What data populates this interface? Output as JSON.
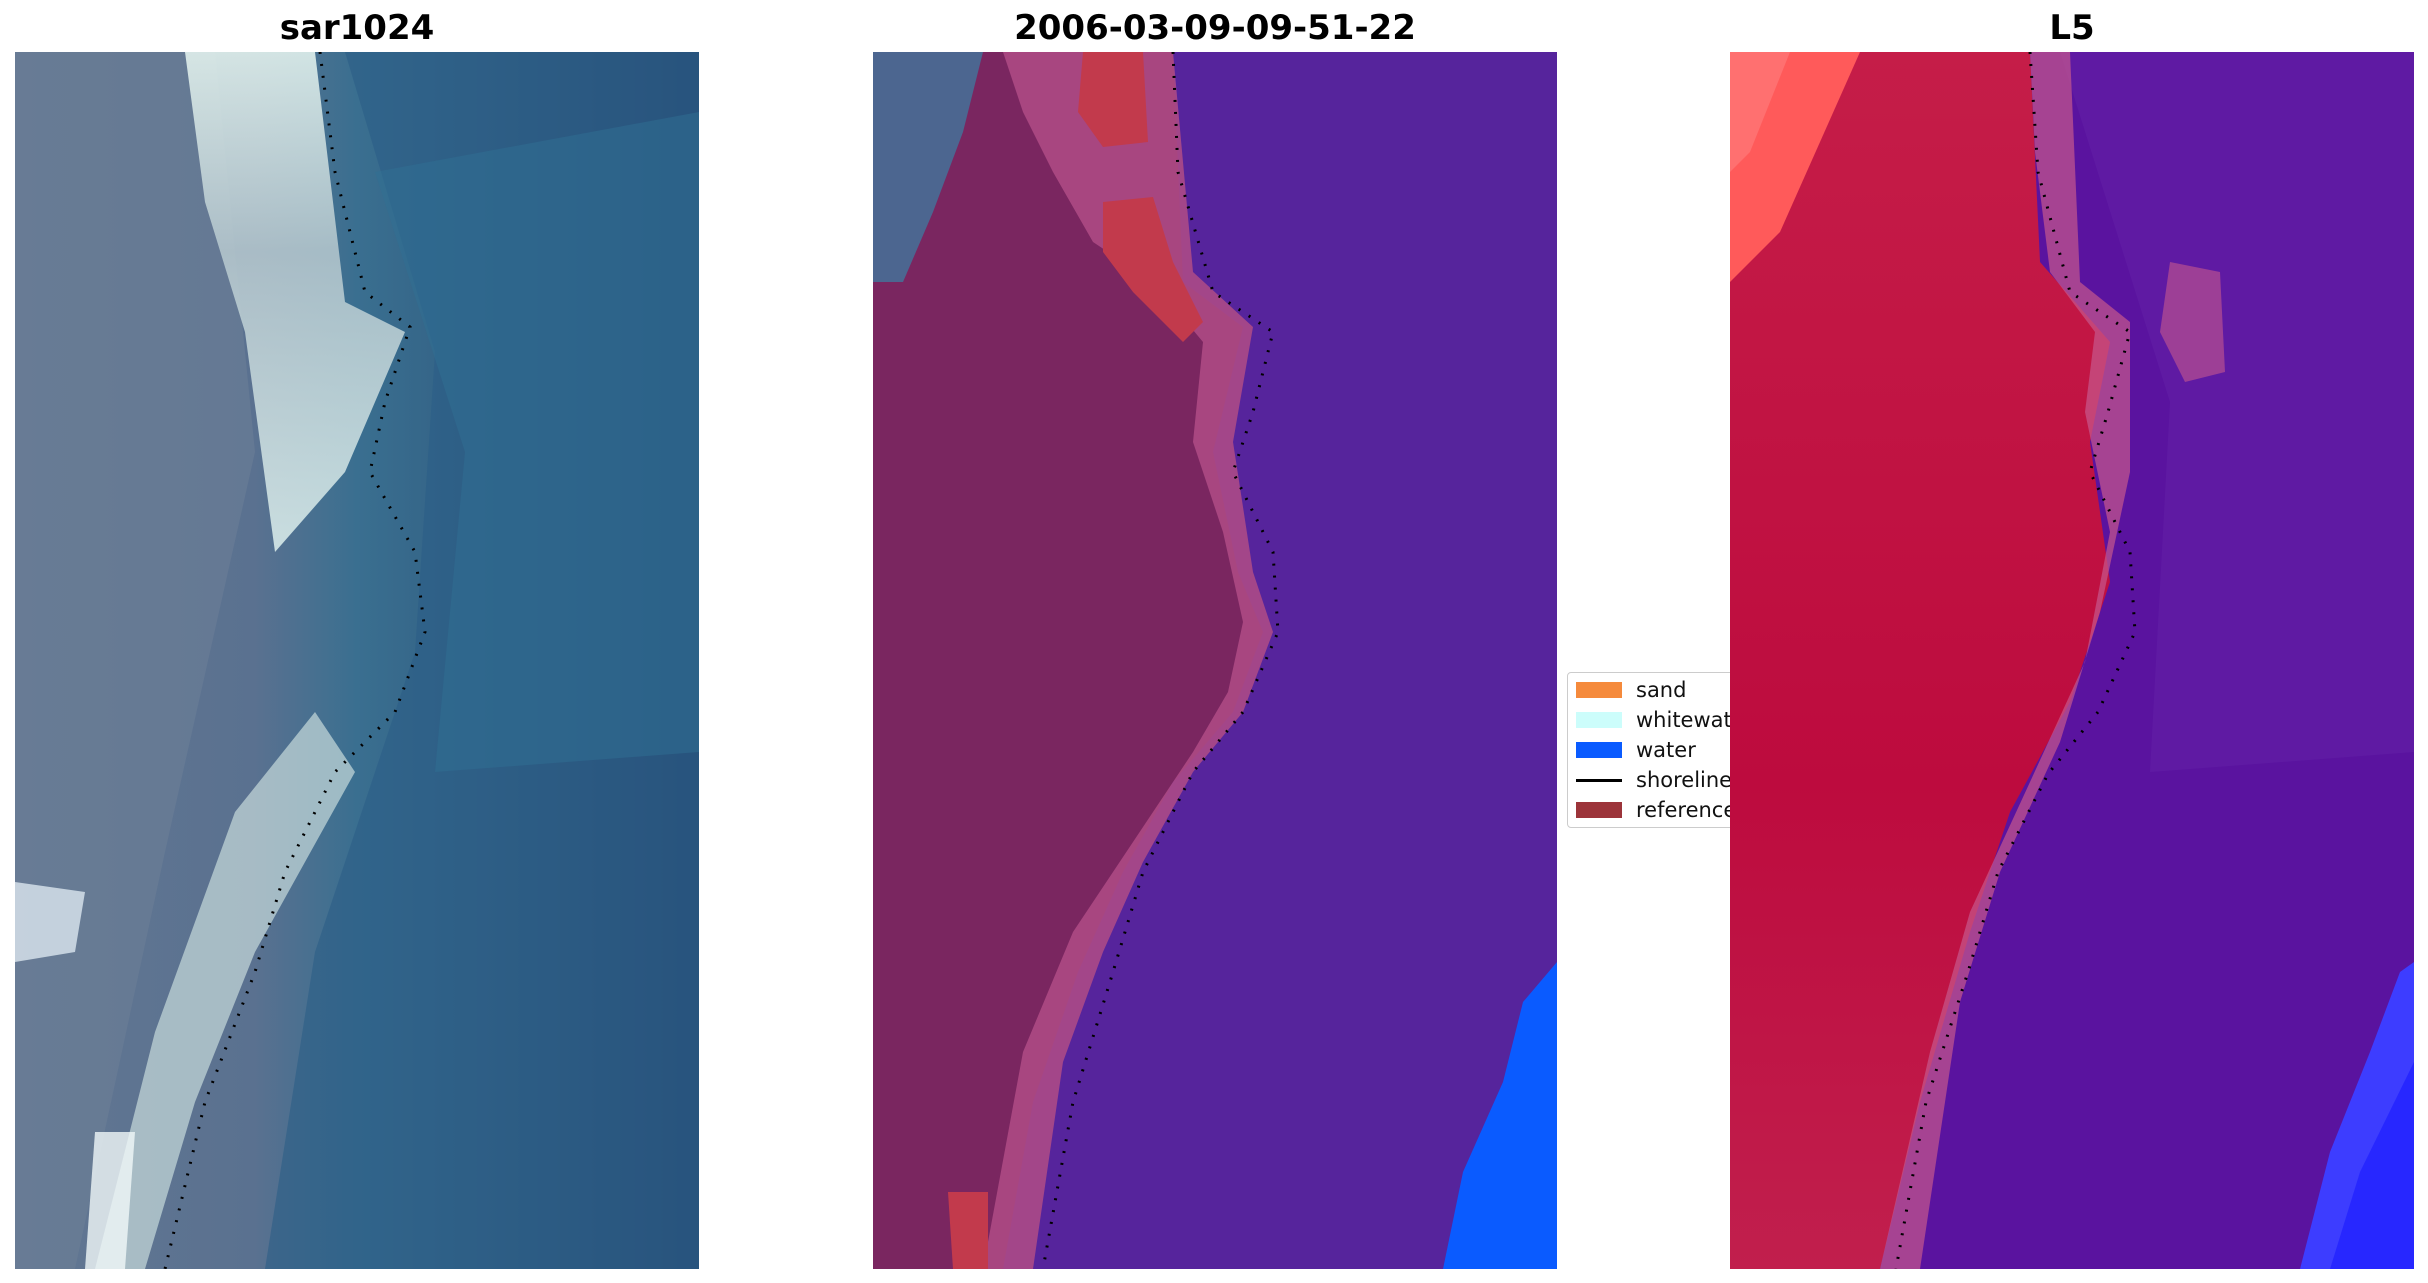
{
  "panels": [
    {
      "id": "rgb",
      "title": "sar1024"
    },
    {
      "id": "classified",
      "title": "2006-03-09-09-51-22"
    },
    {
      "id": "index",
      "title": "L5"
    }
  ],
  "legend": {
    "items": [
      {
        "label": "sand",
        "color": "#f58a3c",
        "type": "patch"
      },
      {
        "label": "whitewater",
        "color": "#ccfdfb",
        "type": "patch"
      },
      {
        "label": "water",
        "color": "#0a5bff",
        "type": "patch"
      },
      {
        "label": "shoreline",
        "color": "#000000",
        "type": "line"
      },
      {
        "label": "reference",
        "color": "#9c343a",
        "type": "patch"
      }
    ]
  },
  "colors": {
    "ocean_dark": "#24466f",
    "ocean_teal": "#2f6f93",
    "land_gray": "#5f7490",
    "surf_white": "#e9f8f4",
    "classified_water": "#56249c",
    "classified_land": "#7a2660",
    "classified_pink": "#b04c86",
    "classified_reference": "#c23a4c",
    "index_red": "#c0163f",
    "index_purple": "#5a139f",
    "index_blue": "#3d3dff"
  }
}
